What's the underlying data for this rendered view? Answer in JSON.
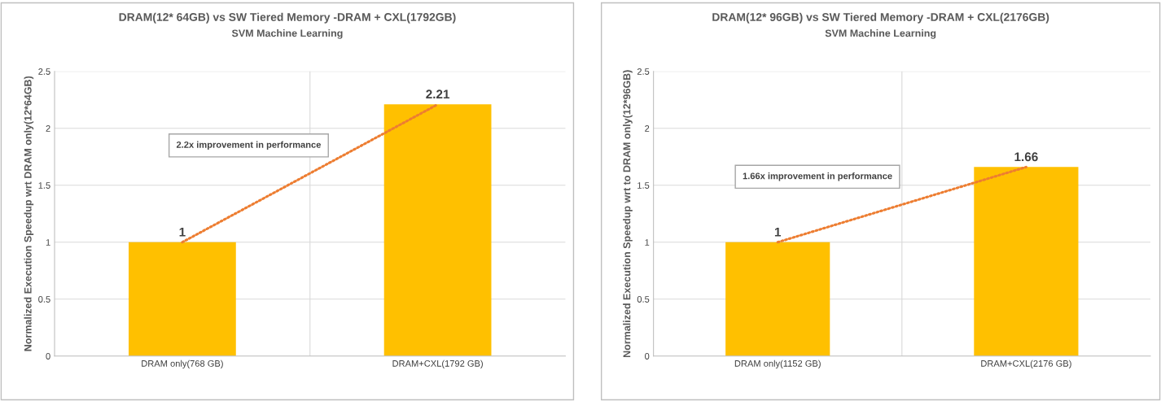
{
  "chart_data": [
    {
      "type": "bar",
      "title": "DRAM(12* 64GB) vs SW Tiered Memory -DRAM + CXL(1792GB)",
      "subtitle": "SVM Machine Learning",
      "ylabel": "Normalized Execution Speedup wrt DRAM only(12*64GB)",
      "categories": [
        "DRAM only(768 GB)",
        "DRAM+CXL(1792 GB)"
      ],
      "series": [
        {
          "color": "#ffc000",
          "values": [
            1,
            2.21
          ],
          "data_labels": true
        },
        {
          "type": "line",
          "color": "#ed7d31",
          "line_style": "dotted",
          "marker": "none",
          "values": [
            1,
            2.21
          ]
        }
      ],
      "annotations": [
        "2.2x improvement in performance"
      ],
      "ylim": [
        0,
        2.5
      ],
      "yticks": [
        0,
        0.5,
        1,
        1.5,
        2,
        2.5
      ],
      "grid": true,
      "legend": false
    },
    {
      "type": "bar",
      "title": "DRAM(12* 96GB) vs SW Tiered Memory -DRAM + CXL(2176GB)",
      "subtitle": "SVM Machine Learning",
      "ylabel": "Normalized Execution Speedup wrt to DRAM only(12*96GB)",
      "categories": [
        "DRAM only(1152 GB)",
        "DRAM+CXL(2176 GB)"
      ],
      "series": [
        {
          "color": "#ffc000",
          "values": [
            1,
            1.66
          ],
          "data_labels": true
        },
        {
          "type": "line",
          "color": "#ed7d31",
          "line_style": "dotted",
          "marker": "none",
          "values": [
            1,
            1.66
          ]
        }
      ],
      "annotations": [
        "1.66x improvement in performance"
      ],
      "ylim": [
        0,
        2.5
      ],
      "yticks": [
        0,
        0.5,
        1,
        1.5,
        2,
        2.5
      ],
      "grid": true,
      "legend": false
    }
  ]
}
